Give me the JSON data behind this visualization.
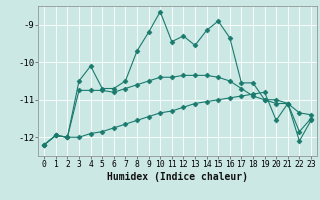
{
  "xlabel": "Humidex (Indice chaleur)",
  "bg_color": "#cce8e4",
  "line_color": "#1a7a6e",
  "grid_color": "#ffffff",
  "x_values": [
    0,
    1,
    2,
    3,
    4,
    5,
    6,
    7,
    8,
    9,
    10,
    11,
    12,
    13,
    14,
    15,
    16,
    17,
    18,
    19,
    20,
    21,
    22,
    23
  ],
  "series1": [
    -12.2,
    -11.95,
    -12.0,
    -10.5,
    -10.1,
    -10.7,
    -10.7,
    -10.5,
    -9.7,
    -9.2,
    -8.65,
    -9.45,
    -9.3,
    -9.55,
    -9.15,
    -8.9,
    -9.35,
    -10.55,
    -10.55,
    -11.0,
    -11.0,
    -11.1,
    -11.85,
    -11.5
  ],
  "series2": [
    -12.2,
    -11.95,
    -12.0,
    -10.75,
    -10.75,
    -10.75,
    -10.8,
    -10.7,
    -10.6,
    -10.5,
    -10.4,
    -10.4,
    -10.35,
    -10.35,
    -10.35,
    -10.4,
    -10.5,
    -10.7,
    -10.9,
    -11.0,
    -11.1,
    -11.1,
    -11.35,
    -11.4
  ],
  "series3": [
    -12.2,
    -11.95,
    -12.0,
    -12.0,
    -11.9,
    -11.85,
    -11.75,
    -11.65,
    -11.55,
    -11.45,
    -11.35,
    -11.3,
    -11.2,
    -11.1,
    -11.05,
    -11.0,
    -10.95,
    -10.9,
    -10.85,
    -10.8,
    -11.55,
    -11.1,
    -12.1,
    -11.55
  ],
  "ylim": [
    -12.5,
    -8.5
  ],
  "yticks": [
    -12,
    -11,
    -10,
    -9
  ],
  "xlim": [
    -0.5,
    23.5
  ],
  "xticks": [
    0,
    1,
    2,
    3,
    4,
    5,
    6,
    7,
    8,
    9,
    10,
    11,
    12,
    13,
    14,
    15,
    16,
    17,
    18,
    19,
    20,
    21,
    22,
    23
  ],
  "marker": "D",
  "markersize": 2.5,
  "linewidth": 0.8,
  "xlabel_fontsize": 7,
  "tick_fontsize": 5.8,
  "ytick_fontsize": 6.5
}
